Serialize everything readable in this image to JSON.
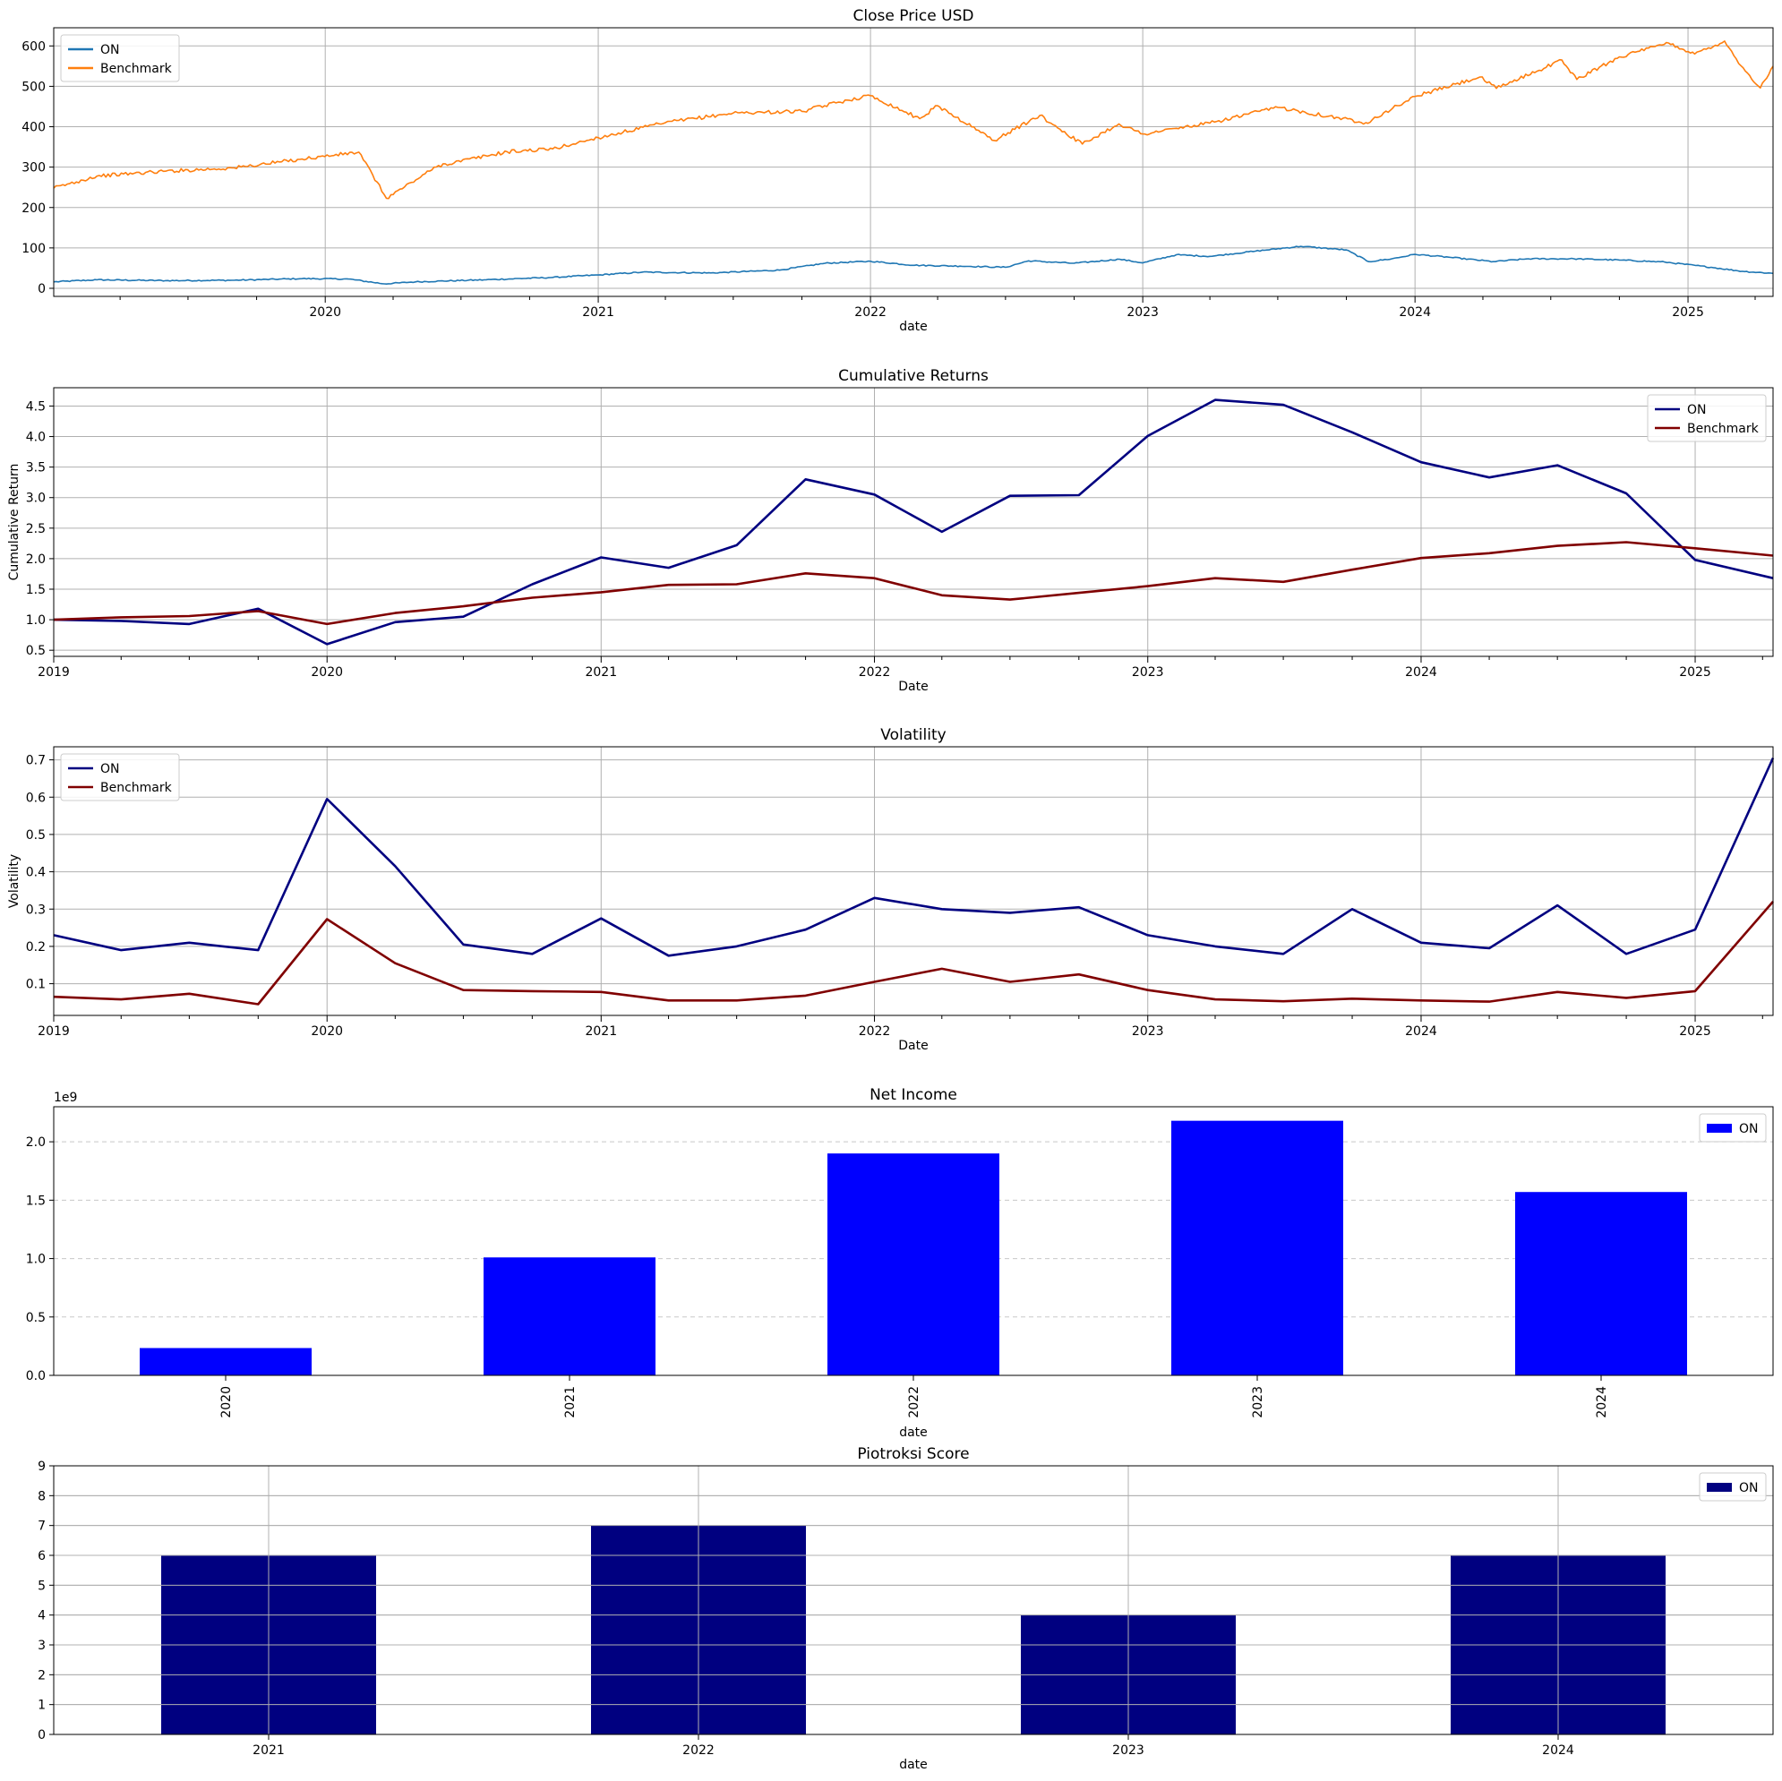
{
  "chart_data": [
    {
      "type": "line",
      "title": "Close Price USD",
      "xlabel": "date",
      "ylabel": "",
      "x_ticks": [
        "2020",
        "2021",
        "2022",
        "2023",
        "2024",
        "2025"
      ],
      "y_ticks": [
        "0",
        "100",
        "200",
        "300",
        "400",
        "500",
        "600"
      ],
      "xlim": [
        "2019-01-02",
        "2025-04-25"
      ],
      "ylim": [
        -20,
        645
      ],
      "grid": true,
      "legend": "top-left",
      "series": [
        {
          "name": "ON",
          "color": "#1f77b4",
          "points": [
            [
              "2019-01-02",
              16
            ],
            [
              "2019-03-01",
              21
            ],
            [
              "2019-06-01",
              19
            ],
            [
              "2019-09-01",
              20
            ],
            [
              "2019-12-01",
              24
            ],
            [
              "2020-02-01",
              23
            ],
            [
              "2020-03-20",
              11
            ],
            [
              "2020-05-01",
              16
            ],
            [
              "2020-08-01",
              21
            ],
            [
              "2020-11-01",
              27
            ],
            [
              "2021-01-01",
              33
            ],
            [
              "2021-03-01",
              40
            ],
            [
              "2021-06-01",
              38
            ],
            [
              "2021-09-01",
              45
            ],
            [
              "2021-11-01",
              62
            ],
            [
              "2022-01-01",
              67
            ],
            [
              "2022-03-01",
              57
            ],
            [
              "2022-05-01",
              55
            ],
            [
              "2022-07-01",
              52
            ],
            [
              "2022-08-01",
              68
            ],
            [
              "2022-10-01",
              62
            ],
            [
              "2022-12-01",
              72
            ],
            [
              "2023-01-01",
              63
            ],
            [
              "2023-02-15",
              83
            ],
            [
              "2023-04-01",
              79
            ],
            [
              "2023-06-01",
              92
            ],
            [
              "2023-08-01",
              104
            ],
            [
              "2023-10-01",
              95
            ],
            [
              "2023-10-31",
              66
            ],
            [
              "2023-12-01",
              73
            ],
            [
              "2024-01-01",
              84
            ],
            [
              "2024-02-15",
              77
            ],
            [
              "2024-04-15",
              66
            ],
            [
              "2024-06-01",
              73
            ],
            [
              "2024-08-01",
              73
            ],
            [
              "2024-10-01",
              70
            ],
            [
              "2024-12-01",
              65
            ],
            [
              "2025-02-01",
              52
            ],
            [
              "2025-03-15",
              42
            ],
            [
              "2025-04-25",
              37
            ]
          ]
        },
        {
          "name": "Benchmark",
          "color": "#ff7f0e",
          "points": [
            [
              "2019-01-02",
              248
            ],
            [
              "2019-03-01",
              278
            ],
            [
              "2019-06-01",
              290
            ],
            [
              "2019-09-01",
              298
            ],
            [
              "2019-12-01",
              320
            ],
            [
              "2020-02-15",
              337
            ],
            [
              "2020-03-23",
              223
            ],
            [
              "2020-06-01",
              304
            ],
            [
              "2020-09-01",
              338
            ],
            [
              "2020-11-01",
              345
            ],
            [
              "2021-01-01",
              373
            ],
            [
              "2021-04-01",
              410
            ],
            [
              "2021-07-01",
              434
            ],
            [
              "2021-10-01",
              438
            ],
            [
              "2021-12-01",
              466
            ],
            [
              "2022-01-01",
              477
            ],
            [
              "2022-03-08",
              420
            ],
            [
              "2022-04-01",
              452
            ],
            [
              "2022-06-16",
              366
            ],
            [
              "2022-08-16",
              428
            ],
            [
              "2022-10-12",
              357
            ],
            [
              "2022-11-30",
              407
            ],
            [
              "2023-01-01",
              382
            ],
            [
              "2023-04-01",
              409
            ],
            [
              "2023-07-01",
              448
            ],
            [
              "2023-10-27",
              410
            ],
            [
              "2024-01-01",
              475
            ],
            [
              "2024-03-28",
              523
            ],
            [
              "2024-04-19",
              495
            ],
            [
              "2024-07-16",
              565
            ],
            [
              "2024-08-05",
              517
            ],
            [
              "2024-10-01",
              573
            ],
            [
              "2024-12-06",
              607
            ],
            [
              "2025-01-10",
              580
            ],
            [
              "2025-02-19",
              612
            ],
            [
              "2025-03-13",
              551
            ],
            [
              "2025-04-08",
              496
            ],
            [
              "2025-04-25",
              550
            ]
          ]
        }
      ]
    },
    {
      "type": "line",
      "title": "Cumulative Returns",
      "xlabel": "Date",
      "ylabel": "Cumulative Return",
      "x_ticks": [
        "2019",
        "2020",
        "2021",
        "2022",
        "2023",
        "2024",
        "2025"
      ],
      "y_ticks": [
        "0.5",
        "1.0",
        "1.5",
        "2.0",
        "2.5",
        "3.0",
        "3.5",
        "4.0",
        "4.5"
      ],
      "xlim": [
        "2019-01-01",
        "2025-04-15"
      ],
      "ylim": [
        0.4,
        4.8
      ],
      "grid": true,
      "legend": "top-right",
      "x": [
        "2019-01-01",
        "2019-04-01",
        "2019-07-01",
        "2019-10-01",
        "2020-01-01",
        "2020-04-01",
        "2020-07-01",
        "2020-10-01",
        "2021-01-01",
        "2021-04-01",
        "2021-07-01",
        "2021-10-01",
        "2022-01-01",
        "2022-04-01",
        "2022-07-01",
        "2022-10-01",
        "2023-01-01",
        "2023-04-01",
        "2023-07-01",
        "2023-10-01",
        "2024-01-01",
        "2024-04-01",
        "2024-07-01",
        "2024-10-01",
        "2025-01-01",
        "2025-04-15"
      ],
      "series": [
        {
          "name": "ON",
          "color": "#000080",
          "values": [
            1.0,
            0.98,
            0.93,
            1.18,
            0.6,
            0.96,
            1.05,
            1.58,
            2.02,
            1.85,
            2.22,
            3.3,
            3.05,
            2.44,
            3.03,
            3.04,
            4.01,
            4.6,
            4.52,
            4.07,
            3.58,
            3.33,
            3.53,
            3.07,
            1.98,
            1.68
          ]
        },
        {
          "name": "Benchmark",
          "color": "#800000",
          "values": [
            1.0,
            1.04,
            1.06,
            1.14,
            0.93,
            1.11,
            1.22,
            1.36,
            1.45,
            1.57,
            1.58,
            1.76,
            1.68,
            1.4,
            1.33,
            1.44,
            1.55,
            1.68,
            1.62,
            1.82,
            2.01,
            2.09,
            2.21,
            2.27,
            2.17,
            2.05
          ]
        }
      ]
    },
    {
      "type": "line",
      "title": "Volatility",
      "xlabel": "Date",
      "ylabel": "Volatility",
      "x_ticks": [
        "2019",
        "2020",
        "2021",
        "2022",
        "2023",
        "2024",
        "2025"
      ],
      "y_ticks": [
        "0.1",
        "0.2",
        "0.3",
        "0.4",
        "0.5",
        "0.6",
        "0.7"
      ],
      "xlim": [
        "2019-01-01",
        "2025-04-15"
      ],
      "ylim": [
        0.015,
        0.735
      ],
      "grid": true,
      "legend": "top-left",
      "x": [
        "2019-01-01",
        "2019-04-01",
        "2019-07-01",
        "2019-10-01",
        "2020-01-01",
        "2020-04-01",
        "2020-07-01",
        "2020-10-01",
        "2021-01-01",
        "2021-04-01",
        "2021-07-01",
        "2021-10-01",
        "2022-01-01",
        "2022-04-01",
        "2022-07-01",
        "2022-10-01",
        "2023-01-01",
        "2023-04-01",
        "2023-07-01",
        "2023-10-01",
        "2024-01-01",
        "2024-04-01",
        "2024-07-01",
        "2024-10-01",
        "2025-01-01",
        "2025-04-15"
      ],
      "series": [
        {
          "name": "ON",
          "color": "#000080",
          "values": [
            0.23,
            0.19,
            0.21,
            0.19,
            0.595,
            0.415,
            0.205,
            0.18,
            0.275,
            0.175,
            0.2,
            0.245,
            0.33,
            0.3,
            0.29,
            0.305,
            0.23,
            0.2,
            0.18,
            0.3,
            0.21,
            0.195,
            0.31,
            0.18,
            0.245,
            0.705
          ]
        },
        {
          "name": "Benchmark",
          "color": "#800000",
          "values": [
            0.065,
            0.058,
            0.073,
            0.045,
            0.273,
            0.155,
            0.083,
            0.08,
            0.078,
            0.055,
            0.055,
            0.068,
            0.105,
            0.14,
            0.105,
            0.125,
            0.083,
            0.058,
            0.053,
            0.06,
            0.055,
            0.052,
            0.078,
            0.062,
            0.08,
            0.32
          ]
        }
      ]
    },
    {
      "type": "bar",
      "title": "Net Income",
      "xlabel": "date",
      "ylabel": "",
      "scale_label": "1e9",
      "categories": [
        "2020",
        "2021",
        "2022",
        "2023",
        "2024"
      ],
      "y_ticks": [
        "0.0",
        "0.5",
        "1.0",
        "1.5",
        "2.0"
      ],
      "ylim": [
        0,
        2.3
      ],
      "grid": "y-dashed",
      "legend": "top-right",
      "x_tick_rotation": "vertical",
      "series": [
        {
          "name": "ON",
          "color": "#0000ff",
          "values": [
            0.234,
            1.01,
            1.9,
            2.18,
            1.57
          ]
        }
      ]
    },
    {
      "type": "bar",
      "title": "Piotroksi Score",
      "xlabel": "date",
      "ylabel": "",
      "categories": [
        "2021",
        "2022",
        "2023",
        "2024"
      ],
      "y_ticks": [
        "0",
        "1",
        "2",
        "3",
        "4",
        "5",
        "6",
        "7",
        "8",
        "9"
      ],
      "ylim": [
        0,
        9
      ],
      "grid": true,
      "legend": "top-right",
      "series": [
        {
          "name": "ON",
          "color": "#000080",
          "values": [
            6,
            7,
            4,
            6
          ]
        }
      ]
    }
  ]
}
